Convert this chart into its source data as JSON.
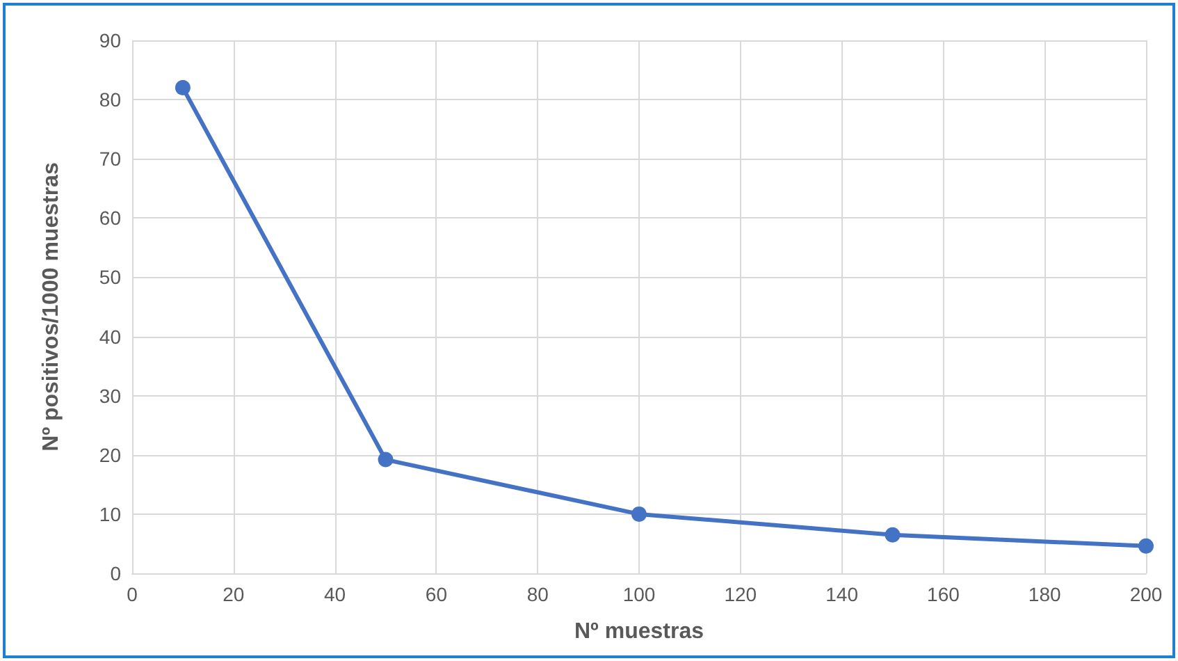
{
  "chart_data": {
    "type": "line",
    "xlabel": "Nº muestras",
    "ylabel": "Nº positivos/1000 muestras",
    "x": [
      10,
      50,
      100,
      150,
      200
    ],
    "series": [
      {
        "color": "#4472c4",
        "values": [
          82,
          19.2,
          10,
          6.5,
          4.6
        ]
      }
    ],
    "xlim": [
      0,
      200
    ],
    "xticks": [
      0,
      20,
      40,
      60,
      80,
      100,
      120,
      140,
      160,
      180,
      200
    ],
    "ylim": [
      0,
      90
    ],
    "yticks": [
      0,
      10,
      20,
      30,
      40,
      50,
      60,
      70,
      80,
      90
    ],
    "grid": true,
    "marker": "circle",
    "line_style": "solid"
  }
}
